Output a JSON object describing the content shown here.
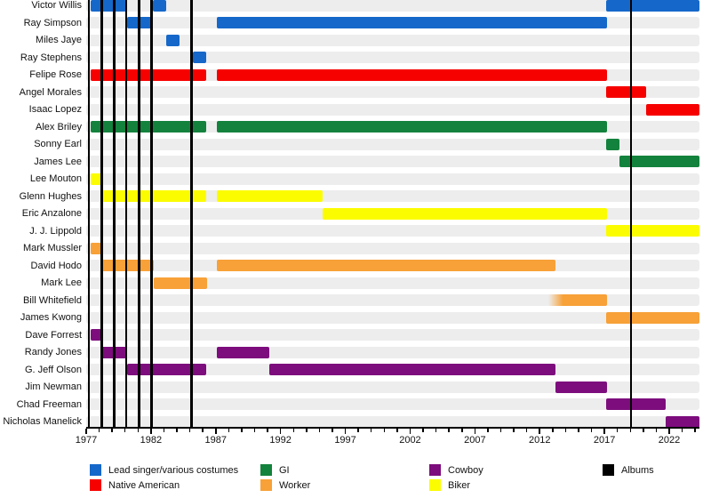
{
  "chart_data": {
    "type": "timeline",
    "x_axis": {
      "min": 1977.0,
      "max": 2024.33,
      "major_tick_years": [
        1977,
        1982,
        1987,
        1992,
        1997,
        2002,
        2007,
        2012,
        2017,
        2022
      ],
      "major_tick_labels": [
        "1977",
        "1982",
        "1987",
        "1992",
        "1997",
        "2002",
        "2007",
        "2012",
        "2017",
        "2022"
      ],
      "minor_tick_start": 1977,
      "minor_tick_end": 2024,
      "grid": false
    },
    "role_colors": {
      "lead_singer": "#1568C9",
      "native_american": "#F60000",
      "gi": "#13823C",
      "worker": "#F7A138",
      "cowboy": "#7D0D7D",
      "biker": "#FCFC00"
    },
    "row_band_color": "#EDEDED",
    "album_line_color": "#000000",
    "members": [
      {
        "name": "Victor Willis",
        "role": "lead_singer",
        "segments": [
          [
            1977.32,
            1980.09
          ],
          [
            1982.12,
            1983.15
          ],
          [
            2017.1,
            2024.33
          ]
        ]
      },
      {
        "name": "Ray Simpson",
        "role": "lead_singer",
        "segments": [
          [
            1980.18,
            1982.16
          ],
          [
            1987.1,
            2017.19
          ]
        ]
      },
      {
        "name": "Miles Jaye",
        "role": "lead_singer",
        "segments": [
          [
            1983.2,
            1984.22
          ]
        ]
      },
      {
        "name": "Ray Stephens",
        "role": "lead_singer",
        "segments": [
          [
            1985.23,
            1986.28
          ]
        ]
      },
      {
        "name": "Felipe Rose",
        "role": "native_american",
        "segments": [
          [
            1977.32,
            1986.28
          ],
          [
            1987.1,
            2017.19
          ]
        ]
      },
      {
        "name": "Angel Morales",
        "role": "native_american",
        "segments": [
          [
            2017.1,
            2020.19
          ]
        ]
      },
      {
        "name": "Isaac Lopez",
        "role": "native_american",
        "segments": [
          [
            2020.19,
            2024.33
          ]
        ]
      },
      {
        "name": "Alex Briley",
        "role": "gi",
        "segments": [
          [
            1977.32,
            1986.28
          ],
          [
            1987.1,
            2017.19
          ]
        ]
      },
      {
        "name": "Sonny Earl",
        "role": "gi",
        "segments": [
          [
            2017.1,
            2018.17
          ]
        ]
      },
      {
        "name": "James Lee",
        "role": "gi",
        "segments": [
          [
            2018.17,
            2024.33
          ]
        ]
      },
      {
        "name": "Lee Mouton",
        "role": "biker",
        "segments": [
          [
            1977.32,
            1978.19
          ]
        ]
      },
      {
        "name": "Glenn Hughes",
        "role": "biker",
        "segments": [
          [
            1978.23,
            1986.28
          ],
          [
            1987.1,
            1995.25
          ]
        ]
      },
      {
        "name": "Eric Anzalone",
        "role": "biker",
        "segments": [
          [
            1995.25,
            2017.19
          ]
        ]
      },
      {
        "name": "J. J. Lippold",
        "role": "biker",
        "segments": [
          [
            2017.1,
            2024.33
          ]
        ]
      },
      {
        "name": "Mark Mussler",
        "role": "worker",
        "segments": [
          [
            1977.32,
            1978.19
          ]
        ]
      },
      {
        "name": "David Hodo",
        "role": "worker",
        "segments": [
          [
            1978.23,
            1982.21
          ],
          [
            1987.1,
            2013.21
          ]
        ]
      },
      {
        "name": "Mark Lee",
        "role": "worker",
        "segments": [
          [
            1982.21,
            1986.33
          ]
        ]
      },
      {
        "name": "Bill Whitefield",
        "role": "worker",
        "segments": [
          [
            2012.7,
            2017.19
          ]
        ],
        "fade_in_first": true
      },
      {
        "name": "James Kwong",
        "role": "worker",
        "segments": [
          [
            2017.1,
            2024.33
          ]
        ]
      },
      {
        "name": "Dave Forrest",
        "role": "cowboy",
        "segments": [
          [
            1977.32,
            1978.19
          ]
        ]
      },
      {
        "name": "Randy Jones",
        "role": "cowboy",
        "segments": [
          [
            1978.19,
            1980.18
          ],
          [
            1987.1,
            1991.13
          ]
        ]
      },
      {
        "name": "G. Jeff Olson",
        "role": "cowboy",
        "segments": [
          [
            1980.18,
            1986.28
          ],
          [
            1991.13,
            2013.21
          ]
        ]
      },
      {
        "name": "Jim Newman",
        "role": "cowboy",
        "segments": [
          [
            2013.21,
            2017.19
          ]
        ]
      },
      {
        "name": "Chad Freeman",
        "role": "cowboy",
        "segments": [
          [
            2017.1,
            2021.72
          ]
        ]
      },
      {
        "name": "Nicholas Manelick",
        "role": "cowboy",
        "segments": [
          [
            2021.72,
            2024.33
          ]
        ]
      }
    ],
    "albums": [
      1977.21,
      1978.19,
      1979.15,
      1980.07,
      1981.09,
      1982.05,
      1985.14,
      2019.04
    ],
    "legend": [
      {
        "label": "Lead singer/various costumes",
        "color": "#1568C9",
        "col": 0,
        "row": 0
      },
      {
        "label": "Native American",
        "color": "#F60000",
        "col": 0,
        "row": 1
      },
      {
        "label": "GI",
        "color": "#13823C",
        "col": 1,
        "row": 0
      },
      {
        "label": "Worker",
        "color": "#F7A138",
        "col": 1,
        "row": 1
      },
      {
        "label": "Cowboy",
        "color": "#7D0D7D",
        "col": 2,
        "row": 0
      },
      {
        "label": "Biker",
        "color": "#FCFC00",
        "col": 2,
        "row": 1
      },
      {
        "label": "Albums",
        "color": "#000000",
        "col": 3,
        "row": 0
      }
    ]
  }
}
